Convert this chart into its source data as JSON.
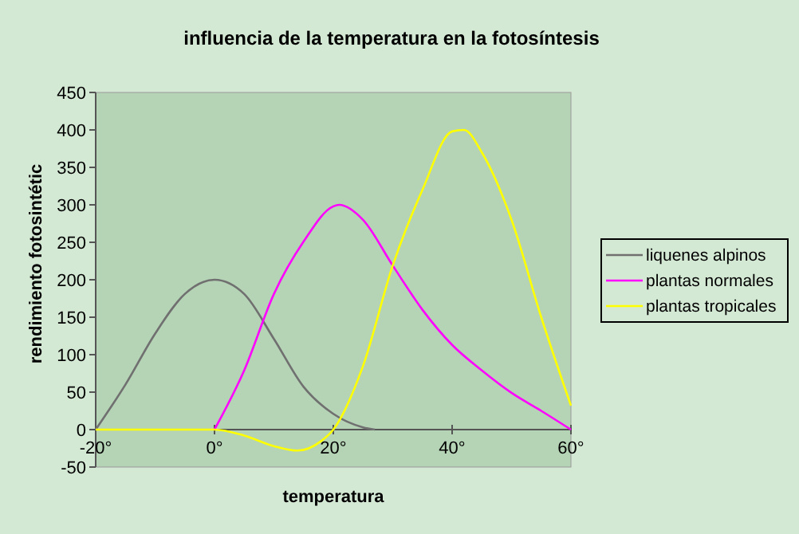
{
  "chart_data": {
    "type": "line",
    "title": "influencia de la temperatura en la fotosíntesis",
    "xlabel": "temperatura",
    "ylabel": "rendimiento fotosintétic",
    "xlim": [
      -20,
      60
    ],
    "xticks": [
      {
        "value": -20,
        "label": "-20°"
      },
      {
        "value": 0,
        "label": "0°"
      },
      {
        "value": 20,
        "label": "20°"
      },
      {
        "value": 40,
        "label": "40°"
      },
      {
        "value": 60,
        "label": "60°"
      }
    ],
    "ylim": [
      -50,
      450
    ],
    "yticks": [
      -50,
      0,
      50,
      100,
      150,
      200,
      250,
      300,
      350,
      400,
      450
    ],
    "legend": "right",
    "marker": "none",
    "line_style": "solid",
    "series": [
      {
        "name": "liquenes alpinos",
        "color": "#707070",
        "x": [
          -20,
          -15,
          -10,
          -5,
          0,
          5,
          10,
          15,
          20,
          25,
          27
        ],
        "values": [
          0,
          60,
          128,
          181,
          200,
          181,
          121,
          57,
          21,
          3,
          0
        ]
      },
      {
        "name": "plantas normales",
        "color": "#ff00ff",
        "x": [
          0,
          5,
          10,
          15,
          20,
          21,
          25,
          30,
          35,
          40,
          45,
          50,
          55,
          60
        ],
        "values": [
          0,
          79,
          181,
          251,
          298,
          300,
          280,
          219,
          160,
          113,
          79,
          49,
          25,
          0
        ]
      },
      {
        "name": "plantas tropicales",
        "color": "#ffff00",
        "x": [
          -20,
          0,
          5,
          10,
          14,
          18,
          20,
          25,
          30,
          35,
          40,
          42,
          45,
          50,
          55,
          60
        ],
        "values": [
          0,
          0,
          -8,
          -22,
          -28,
          -15,
          0,
          85,
          219,
          320,
          398,
          400,
          370,
          280,
          150,
          32
        ]
      }
    ]
  }
}
